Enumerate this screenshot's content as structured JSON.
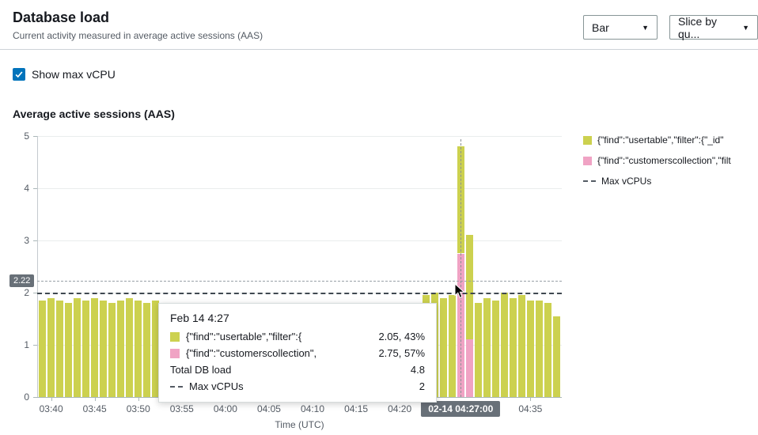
{
  "header": {
    "title": "Database load",
    "subtitle": "Current activity measured in average active sessions (AAS)"
  },
  "controls": {
    "chart_type_label": "Bar",
    "slice_by_label": "Slice by qu..."
  },
  "checkbox": {
    "label": "Show max vCPU",
    "checked": true
  },
  "colors": {
    "bar_yellow": "#ccd14f",
    "bar_pink": "#f0a3c4",
    "accent_blue": "#0073bb",
    "badge_gray": "#687078",
    "max_line": "#3f4850"
  },
  "legend": [
    {
      "swatch": "bar-yellow",
      "label": "{\"find\":\"usertable\",\"filter\":{\"_id\""
    },
    {
      "swatch": "bar-pink",
      "label": "{\"find\":\"customerscollection\",\"filt"
    },
    {
      "swatch": "dashed",
      "label": "Max vCPUs"
    }
  ],
  "tooltip": {
    "title": "Feb 14 4:27",
    "rows": [
      {
        "swatch": "bar-yellow",
        "label": "{\"find\":\"usertable\",\"filter\":{",
        "value": "2.05, 43%"
      },
      {
        "swatch": "bar-pink",
        "label": "{\"find\":\"customerscollection\",",
        "value": "2.75, 57%"
      },
      {
        "swatch": "none",
        "label": "Total DB load",
        "value": "4.8"
      },
      {
        "swatch": "dashed",
        "label": "Max vCPUs",
        "value": "2"
      }
    ]
  },
  "chart_data": {
    "type": "bar",
    "stacked": true,
    "title": "Average active sessions (AAS)",
    "xlabel": "Time (UTC)",
    "ylabel": "",
    "ylim": [
      0,
      5
    ],
    "yticks": [
      0,
      1,
      2,
      3,
      4,
      5
    ],
    "xticks": [
      "03:40",
      "03:45",
      "03:50",
      "03:55",
      "04:00",
      "04:05",
      "04:10",
      "04:15",
      "04:20",
      "04:35"
    ],
    "x_highlight": {
      "label": "02-14 04:27:00",
      "time": "04:27"
    },
    "max_vcpus": 2,
    "hover_value": 2.22,
    "hover_label": "2.22",
    "grid": true,
    "legend_position": "right",
    "x": [
      "03:39",
      "03:40",
      "03:41",
      "03:42",
      "03:43",
      "03:44",
      "03:45",
      "03:46",
      "03:47",
      "03:48",
      "03:49",
      "03:50",
      "03:51",
      "03:52",
      "03:53",
      "03:54",
      "03:55",
      "03:56",
      "03:57",
      "03:58",
      "03:59",
      "04:00",
      "04:01",
      "04:02",
      "04:03",
      "04:04",
      "04:05",
      "04:06",
      "04:07",
      "04:08",
      "04:09",
      "04:10",
      "04:11",
      "04:12",
      "04:13",
      "04:14",
      "04:15",
      "04:16",
      "04:17",
      "04:18",
      "04:19",
      "04:20",
      "04:21",
      "04:22",
      "04:23",
      "04:24",
      "04:25",
      "04:26",
      "04:27",
      "04:28",
      "04:29",
      "04:30",
      "04:31",
      "04:32",
      "04:33",
      "04:34",
      "04:35",
      "04:36",
      "04:37",
      "04:38"
    ],
    "series": [
      {
        "name": "{\"find\":\"usertable\",\"filter\":{\"_id\"",
        "color": "#ccd14f",
        "values": [
          1.85,
          1.9,
          1.85,
          1.8,
          1.9,
          1.85,
          1.9,
          1.85,
          1.8,
          1.85,
          1.9,
          1.85,
          1.8,
          1.85,
          1.75,
          1.7,
          1.7,
          1.65,
          1.7,
          1.6,
          1.65,
          1.7,
          1.6,
          1.65,
          1.7,
          1.6,
          1.65,
          1.7,
          1.6,
          1.65,
          1.7,
          1.65,
          1.6,
          1.65,
          1.7,
          1.6,
          1.65,
          1.7,
          1.65,
          1.6,
          1.65,
          1.7,
          1.7,
          1.75,
          1.95,
          2.0,
          1.9,
          1.95,
          2.05,
          2.0,
          1.8,
          1.9,
          1.85,
          2.0,
          1.9,
          1.95,
          1.85,
          1.85,
          1.8,
          1.55
        ]
      },
      {
        "name": "{\"find\":\"customerscollection\",\"filt",
        "color": "#f0a3c4",
        "values": [
          0,
          0,
          0,
          0,
          0,
          0,
          0,
          0,
          0,
          0,
          0,
          0,
          0,
          0,
          0,
          0,
          0,
          0,
          0,
          0,
          0,
          0,
          0,
          0,
          0,
          0,
          0,
          0,
          0,
          0,
          0,
          0,
          0,
          0,
          0,
          0,
          0,
          0,
          0,
          0,
          0,
          0,
          0,
          0,
          0,
          0,
          0,
          0,
          2.75,
          1.1,
          0,
          0,
          0,
          0,
          0,
          0,
          0,
          0,
          0,
          0
        ]
      }
    ]
  }
}
